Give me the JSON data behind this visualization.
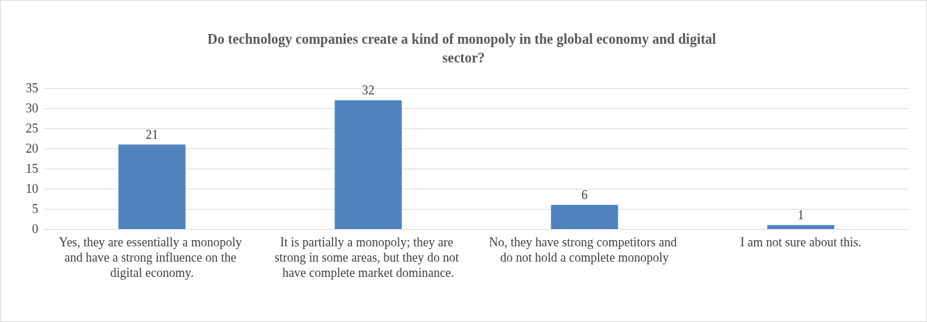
{
  "chart_data": {
    "type": "bar",
    "title": "Do technology companies create a kind of monopoly in the global economy and digital sector?",
    "categories": [
      "Yes, they are essentially a monopoly and have a strong influence on the digital economy.",
      "It is partially a monopoly; they are strong in some areas, but they do not have complete market dominance.",
      "No, they have strong competitors and do not hold a complete monopoly",
      "I am not sure about this."
    ],
    "values": [
      21,
      32,
      6,
      1
    ],
    "color": "#4f81bd",
    "ylim": [
      0,
      35
    ],
    "yticks": [
      0,
      5,
      10,
      15,
      20,
      25,
      30,
      35
    ],
    "grid": "y",
    "data_labels": true
  }
}
